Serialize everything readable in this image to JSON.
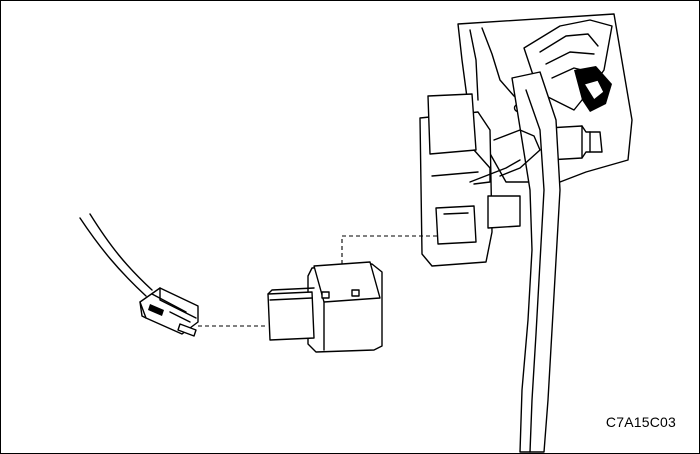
{
  "figure": {
    "code": "C7A15C03"
  },
  "colors": {
    "line": "#000000",
    "background": "#ffffff"
  },
  "icons": [
    "wiring-harness-connector-icon",
    "switch-connector-icon",
    "pedal-bracket-icon"
  ]
}
